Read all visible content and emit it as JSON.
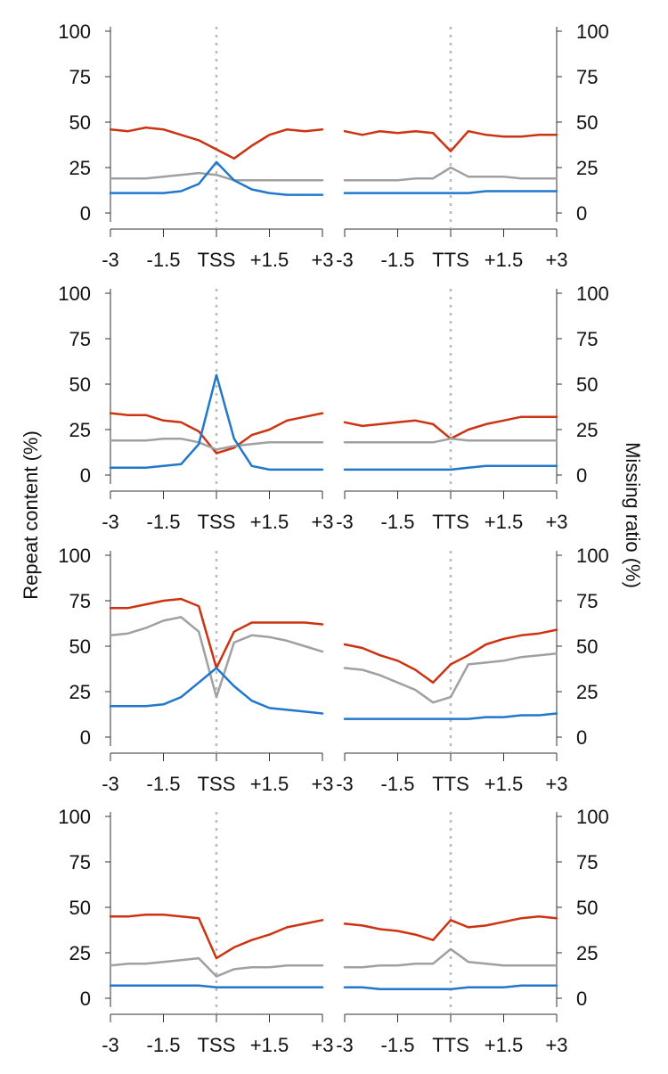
{
  "chart_data": {
    "type": "line",
    "ylabel_left": "Repeat content (%)",
    "ylabel_right": "Missing ratio (%)",
    "ylim": [
      0,
      100
    ],
    "yticks": [
      0,
      25,
      50,
      75,
      100
    ],
    "colors": {
      "red": "#cc3311",
      "grey": "#a0a0a0",
      "blue": "#2277cc",
      "marker": "#bbbbbb"
    },
    "regions": {
      "left": {
        "x": [
          -3,
          -2.5,
          -2,
          -1.5,
          -1,
          -0.5,
          0,
          0.5,
          1,
          1.5,
          2,
          2.5,
          3
        ],
        "xticks": [
          "-3",
          "-1.5",
          "TSS",
          "+1.5",
          "+3"
        ]
      },
      "right": {
        "x": [
          -3,
          -2.5,
          -2,
          -1.5,
          -1,
          -0.5,
          0,
          0.5,
          1,
          1.5,
          2,
          2.5,
          3
        ],
        "xticks": [
          "-3",
          "-1.5",
          "TTS",
          "+1.5",
          "+3"
        ]
      }
    },
    "panels": [
      {
        "left": [
          {
            "color": "red",
            "values": [
              46,
              45,
              47,
              46,
              43,
              40,
              35,
              30,
              37,
              43,
              46,
              45,
              46
            ]
          },
          {
            "color": "grey",
            "values": [
              19,
              19,
              19,
              20,
              21,
              22,
              21,
              18,
              18,
              18,
              18,
              18,
              18
            ]
          },
          {
            "color": "blue",
            "values": [
              11,
              11,
              11,
              11,
              12,
              16,
              28,
              18,
              13,
              11,
              10,
              10,
              10
            ]
          }
        ],
        "right": [
          {
            "color": "red",
            "values": [
              45,
              43,
              45,
              44,
              45,
              44,
              34,
              45,
              43,
              42,
              42,
              43,
              43
            ]
          },
          {
            "color": "grey",
            "values": [
              18,
              18,
              18,
              18,
              19,
              19,
              25,
              20,
              20,
              20,
              19,
              19,
              19
            ]
          },
          {
            "color": "blue",
            "values": [
              11,
              11,
              11,
              11,
              11,
              11,
              11,
              11,
              12,
              12,
              12,
              12,
              12
            ]
          }
        ]
      },
      {
        "left": [
          {
            "color": "red",
            "values": [
              34,
              33,
              33,
              30,
              29,
              24,
              12,
              15,
              22,
              25,
              30,
              32,
              34
            ]
          },
          {
            "color": "grey",
            "values": [
              19,
              19,
              19,
              20,
              20,
              18,
              14,
              16,
              17,
              18,
              18,
              18,
              18
            ]
          },
          {
            "color": "blue",
            "values": [
              4,
              4,
              4,
              5,
              6,
              17,
              55,
              20,
              5,
              3,
              3,
              3,
              3
            ]
          }
        ],
        "right": [
          {
            "color": "red",
            "values": [
              29,
              27,
              28,
              29,
              30,
              28,
              20,
              25,
              28,
              30,
              32,
              32,
              32
            ]
          },
          {
            "color": "grey",
            "values": [
              18,
              18,
              18,
              18,
              18,
              18,
              20,
              19,
              19,
              19,
              19,
              19,
              19
            ]
          },
          {
            "color": "blue",
            "values": [
              3,
              3,
              3,
              3,
              3,
              3,
              3,
              4,
              5,
              5,
              5,
              5,
              5
            ]
          }
        ]
      },
      {
        "left": [
          {
            "color": "red",
            "values": [
              71,
              71,
              73,
              75,
              76,
              72,
              38,
              58,
              63,
              63,
              63,
              63,
              62
            ]
          },
          {
            "color": "grey",
            "values": [
              56,
              57,
              60,
              64,
              66,
              58,
              22,
              52,
              56,
              55,
              53,
              50,
              47
            ]
          },
          {
            "color": "blue",
            "values": [
              17,
              17,
              17,
              18,
              22,
              30,
              38,
              28,
              20,
              16,
              15,
              14,
              13
            ]
          }
        ],
        "right": [
          {
            "color": "red",
            "values": [
              51,
              49,
              45,
              42,
              37,
              30,
              40,
              45,
              51,
              54,
              56,
              57,
              59
            ]
          },
          {
            "color": "grey",
            "values": [
              38,
              37,
              34,
              30,
              26,
              19,
              22,
              40,
              41,
              42,
              44,
              45,
              46
            ]
          },
          {
            "color": "blue",
            "values": [
              10,
              10,
              10,
              10,
              10,
              10,
              10,
              10,
              11,
              11,
              12,
              12,
              13
            ]
          }
        ]
      },
      {
        "left": [
          {
            "color": "red",
            "values": [
              45,
              45,
              46,
              46,
              45,
              44,
              22,
              28,
              32,
              35,
              39,
              41,
              43
            ]
          },
          {
            "color": "grey",
            "values": [
              18,
              19,
              19,
              20,
              21,
              22,
              12,
              16,
              17,
              17,
              18,
              18,
              18
            ]
          },
          {
            "color": "blue",
            "values": [
              7,
              7,
              7,
              7,
              7,
              7,
              6,
              6,
              6,
              6,
              6,
              6,
              6
            ]
          }
        ],
        "right": [
          {
            "color": "red",
            "values": [
              41,
              40,
              38,
              37,
              35,
              32,
              43,
              39,
              40,
              42,
              44,
              45,
              44
            ]
          },
          {
            "color": "grey",
            "values": [
              17,
              17,
              18,
              18,
              19,
              19,
              27,
              20,
              19,
              18,
              18,
              18,
              18
            ]
          },
          {
            "color": "blue",
            "values": [
              6,
              6,
              5,
              5,
              5,
              5,
              5,
              6,
              6,
              6,
              7,
              7,
              7
            ]
          }
        ]
      }
    ]
  }
}
